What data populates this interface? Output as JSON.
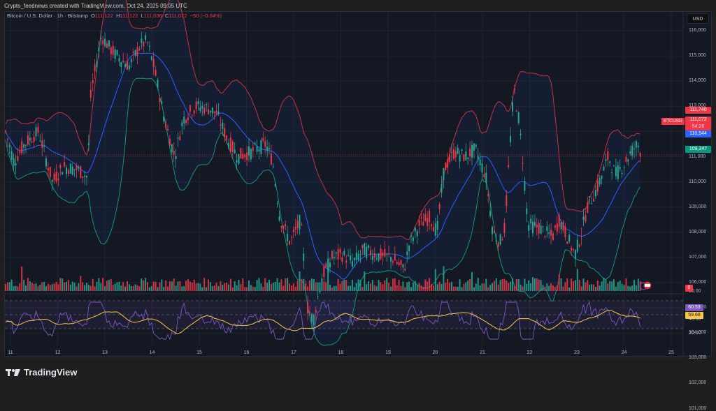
{
  "caption": "Crypto_feednews created with TradingView.com, Oct 24, 2025 09:05 UTC",
  "legend": {
    "symbol": "Bitcoin / U.S. Dollar · 1h · Bitstamp",
    "o_label": "O",
    "o_value": "111,122",
    "h_label": "H",
    "h_value": "111,122",
    "l_label": "L",
    "l_value": "111,036",
    "c_label": "C",
    "c_value": "111,072",
    "change": "−50 (−0.04%)"
  },
  "currency_button": "USD",
  "price_axis": [
    "116,000",
    "115,000",
    "114,000",
    "113,000",
    "112,000",
    "111,000",
    "110,000",
    "109,000",
    "108,000",
    "107,000",
    "106,000",
    "105,000",
    "104,000",
    "103,000",
    "102,000",
    "101,000"
  ],
  "rsi_axis": [
    "80.00",
    "40.00",
    "20.00"
  ],
  "time_axis": [
    "11",
    "12",
    "13",
    "14",
    "15",
    "16",
    "17",
    "18",
    "19",
    "20",
    "21",
    "22",
    "23",
    "24",
    "25"
  ],
  "badges": {
    "symbol_tag": "BTCUSD",
    "bb_upper": "111,740",
    "last_price": "111,072",
    "countdown": "54:26",
    "bb_basis": "110,544",
    "bb_lower": "109,347",
    "volume": "0",
    "rsi": "60.53",
    "rsi_ma": "59.68"
  },
  "colors": {
    "up": "#22ab94",
    "down": "#f23645",
    "bb_upper": "#c2334a",
    "bb_basis": "#2962ff",
    "bb_lower": "#139478",
    "rsi": "#7e57c2",
    "rsi_ma": "#f7c844"
  },
  "brand": "TradingView",
  "chart_data": {
    "type": "candlestick",
    "title": "Bitcoin / U.S. Dollar · 1h · Bitstamp",
    "indicators": [
      "Bollinger Bands",
      "Volume",
      "RSI with MA"
    ],
    "x": [
      "11",
      "12",
      "13",
      "14",
      "15",
      "16",
      "17",
      "18",
      "19",
      "20",
      "21",
      "22",
      "23",
      "24"
    ],
    "approx_daily_close": [
      111000,
      110500,
      115500,
      115000,
      112500,
      111000,
      104500,
      107000,
      107200,
      111200,
      113000,
      107800,
      107500,
      111072
    ],
    "ylim": [
      101000,
      116800
    ],
    "rsi_range": [
      20,
      80
    ],
    "rsi_last": 60.53,
    "rsi_ma_last": 59.68
  }
}
